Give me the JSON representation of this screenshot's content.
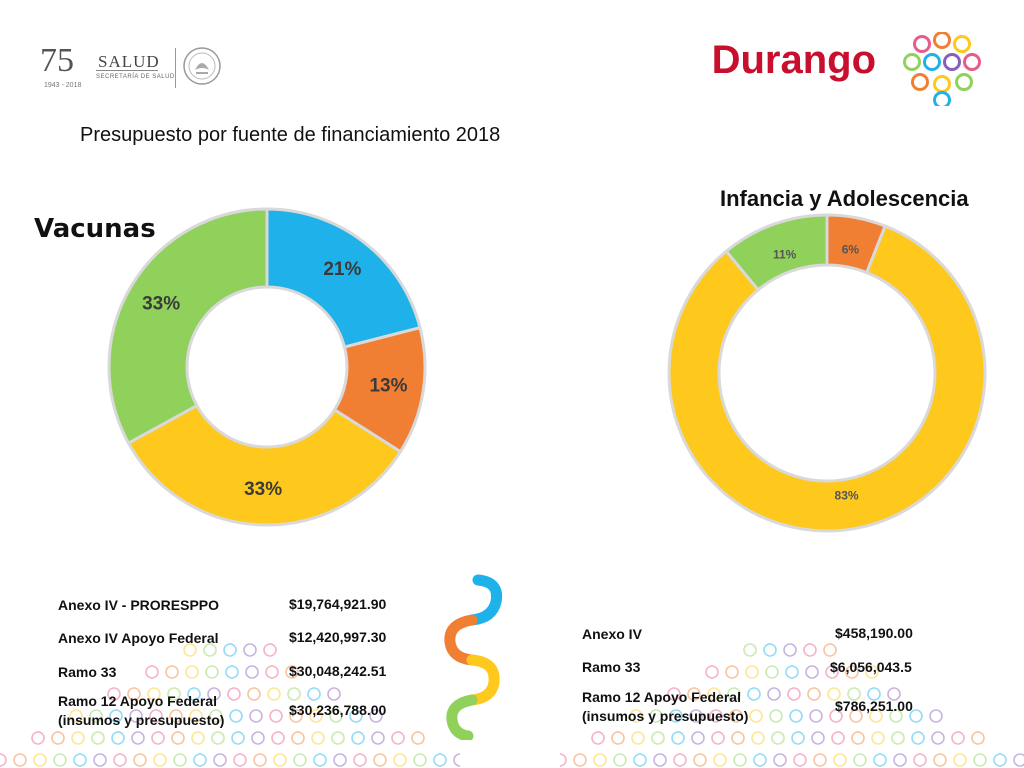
{
  "header": {
    "logo_75": "75",
    "logo_years": "1943 - 2018",
    "logo_salud": "SALUD",
    "logo_secretaria": "SECRETARÍA DE SALUD",
    "state_title": "Durango",
    "state_title_color": "#c8102e"
  },
  "subtitle": "Presupuesto por fuente de financiamiento 2018",
  "chart_data": [
    {
      "type": "pie",
      "donut": true,
      "title": "Vacunas",
      "slices": [
        {
          "value": 21,
          "label": "21%",
          "color": "#1fb2ea"
        },
        {
          "value": 13,
          "label": "13%",
          "color": "#f07f34"
        },
        {
          "value": 33,
          "label": "33%",
          "color": "#ffc81d"
        },
        {
          "value": 33,
          "label": "33%",
          "color": "#8fd15a"
        }
      ],
      "budget": [
        {
          "label": "Anexo IV - PRORESPPO",
          "amount": "$19,764,921.90"
        },
        {
          "label": "Anexo IV Apoyo Federal",
          "amount": "$12,420,997.30"
        },
        {
          "label": "Ramo 33",
          "amount": "$30,048,242.51"
        },
        {
          "label": "Ramo 12 Apoyo Federal",
          "label2": "(insumos y presupuesto)",
          "amount": "$30,236,788.00"
        }
      ]
    },
    {
      "type": "pie",
      "donut": true,
      "title": "Infancia y Adolescencia",
      "slices": [
        {
          "value": 6,
          "label": "6%",
          "color": "#f07f34"
        },
        {
          "value": 83,
          "label": "83%",
          "color": "#ffc81d"
        },
        {
          "value": 11,
          "label": "11%",
          "color": "#8fd15a"
        }
      ],
      "budget": [
        {
          "label": "Anexo IV",
          "amount": "$458,190.00"
        },
        {
          "label": "Ramo 33",
          "amount": "$6,056,043.5"
        },
        {
          "label": "Ramo 12 Apoyo Federal",
          "label2": "(insumos y presupuesto)",
          "amount": "$786,251.00"
        }
      ]
    }
  ],
  "decor": {
    "ribbon_colors": [
      "#1fb2ea",
      "#f07f34",
      "#ffc81d",
      "#8fd15a"
    ],
    "ring_colors": [
      "#e85c8a",
      "#f07f34",
      "#ffc81d",
      "#8fd15a",
      "#1fb2ea",
      "#8a5fb8"
    ]
  }
}
